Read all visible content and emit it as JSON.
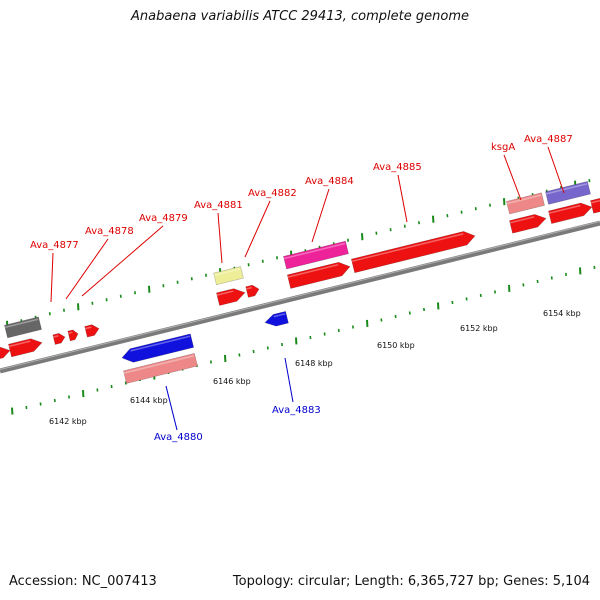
{
  "title": "Anabaena variabilis ATCC 29413, complete genome",
  "footer": {
    "accession": "Accession: NC_007413",
    "stats": "Topology: circular; Length: 6,365,727 bp; Genes: 5,104"
  },
  "colors": {
    "backbone": "#7a7a7a",
    "tick": "#1a8a1a",
    "label_forward": "#dd0000",
    "label_reverse": "#0000cc",
    "cds_red": "#ee1111",
    "cds_blue": "#1111dd",
    "salmon": "#ee8888",
    "magenta": "#ee2299",
    "yellow": "#eeee99",
    "purple": "#7766cc",
    "gray": "#666666"
  },
  "axis_labels": [
    {
      "kbp": 6142,
      "text": "6142 kbp"
    },
    {
      "kbp": 6144,
      "text": "6144 kbp"
    },
    {
      "kbp": 6146,
      "text": "6146 kbp"
    },
    {
      "kbp": 6148,
      "text": "6148 kbp"
    },
    {
      "kbp": 6150,
      "text": "6150 kbp"
    },
    {
      "kbp": 6152,
      "text": "6152 kbp"
    },
    {
      "kbp": 6154,
      "text": "6154 kbp"
    }
  ],
  "gene_labels": [
    {
      "text": "Ava_4877",
      "strand": "forward"
    },
    {
      "text": "Ava_4878",
      "strand": "forward"
    },
    {
      "text": "Ava_4879",
      "strand": "forward"
    },
    {
      "text": "Ava_4881",
      "strand": "forward"
    },
    {
      "text": "Ava_4882",
      "strand": "forward"
    },
    {
      "text": "Ava_4884",
      "strand": "forward"
    },
    {
      "text": "Ava_4885",
      "strand": "forward"
    },
    {
      "text": "ksgA",
      "strand": "forward"
    },
    {
      "text": "Ava_4887",
      "strand": "forward"
    },
    {
      "text": "Ava_4883",
      "strand": "reverse"
    },
    {
      "text": "Ava_4880",
      "strand": "reverse"
    }
  ]
}
